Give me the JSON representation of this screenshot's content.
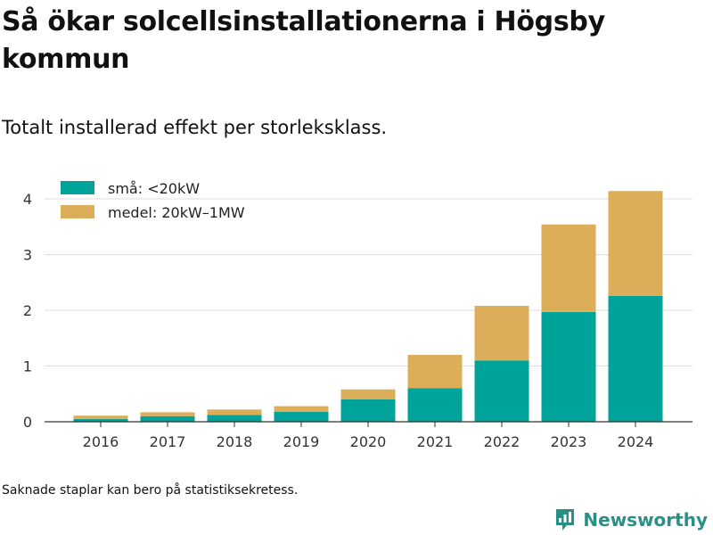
{
  "header": {
    "title": "Så ökar solcellsinstallationerna i Högsby kommun",
    "subtitle": "Totalt installerad effekt per storleksklass."
  },
  "chart_data": {
    "type": "bar",
    "stacked": true,
    "categories": [
      "2016",
      "2017",
      "2018",
      "2019",
      "2020",
      "2021",
      "2022",
      "2023",
      "2024"
    ],
    "series": [
      {
        "name": "små: <20kW",
        "color": "#00a39a",
        "values": [
          0.05,
          0.1,
          0.12,
          0.18,
          0.4,
          0.6,
          1.1,
          1.97,
          2.26
        ]
      },
      {
        "name": "medel: 20kW–1MW",
        "color": "#dcae5a",
        "values": [
          0.06,
          0.07,
          0.1,
          0.1,
          0.18,
          0.6,
          0.98,
          1.57,
          1.88
        ]
      }
    ],
    "ylim": [
      0,
      4.4
    ],
    "yticks": [
      0,
      1,
      2,
      3,
      4
    ],
    "grid": true,
    "legend": "top-left"
  },
  "footer": {
    "note": "Saknade staplar kan bero på statistiksekretess.",
    "brand": "Newsworthy"
  }
}
